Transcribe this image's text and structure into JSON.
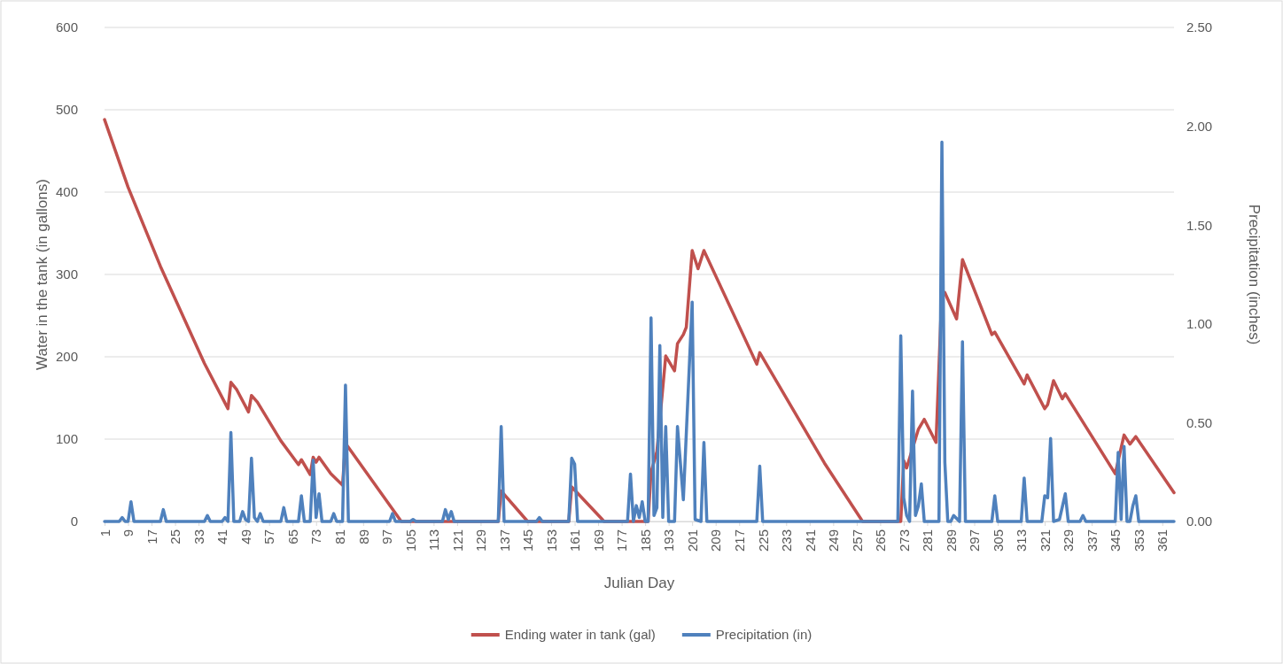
{
  "chart_data": {
    "type": "line",
    "xlabel": "Julian Day",
    "ylabel": "Water in the tank (in gallons)",
    "y2label": "Precipitation (inches)",
    "xlim": [
      1,
      365
    ],
    "xticks": [
      1,
      9,
      17,
      25,
      33,
      41,
      49,
      57,
      65,
      73,
      81,
      89,
      97,
      105,
      113,
      121,
      129,
      137,
      145,
      153,
      161,
      169,
      177,
      185,
      193,
      201,
      209,
      217,
      225,
      233,
      241,
      249,
      257,
      265,
      273,
      281,
      289,
      297,
      305,
      313,
      321,
      329,
      337,
      345,
      353,
      361
    ],
    "ylim": [
      0,
      600
    ],
    "yticks": [
      0,
      100,
      200,
      300,
      400,
      500,
      600
    ],
    "y2lim": [
      0,
      2.5
    ],
    "y2ticks": [
      {
        "value": 0,
        "label": "0.00"
      },
      {
        "value": 0.5,
        "label": "0.50"
      },
      {
        "value": 1,
        "label": "1.00"
      },
      {
        "value": 1.5,
        "label": "1.50"
      },
      {
        "value": 2,
        "label": "2.00"
      },
      {
        "value": 2.5,
        "label": "2.50"
      }
    ],
    "grid": "y",
    "legend": "bottom",
    "series": [
      {
        "name": "Ending water in tank (gal)",
        "color": "#c0504d",
        "x": [
          1,
          9,
          20,
          35,
          43,
          44,
          46,
          50,
          51,
          53,
          61,
          67,
          68,
          71,
          72,
          73,
          74,
          78,
          82,
          83,
          99,
          102,
          135,
          136,
          145,
          159,
          160,
          170,
          171,
          186,
          187,
          189,
          192,
          195,
          196,
          198,
          199,
          201,
          203,
          205,
          223,
          224,
          246,
          259,
          272,
          273,
          274,
          278,
          280,
          284,
          286,
          287,
          291,
          293,
          303,
          304,
          314,
          315,
          321,
          322,
          324,
          327,
          328,
          345,
          348,
          350,
          352,
          365
        ],
        "values": [
          488,
          406,
          310,
          192,
          137,
          169,
          160,
          133,
          153,
          145,
          98,
          69,
          75,
          57,
          78,
          72,
          78,
          58,
          44,
          95,
          15,
          0,
          0,
          37,
          0,
          0,
          42,
          4,
          0,
          0,
          60,
          85,
          201,
          183,
          216,
          227,
          236,
          329,
          307,
          329,
          191,
          205,
          71,
          0,
          0,
          74,
          65,
          112,
          124,
          96,
          280,
          278,
          246,
          318,
          227,
          230,
          167,
          178,
          137,
          142,
          171,
          149,
          155,
          58,
          105,
          94,
          103,
          35
        ]
      },
      {
        "name": "Precipitation (in)",
        "color": "#4f81bd",
        "axis": "y2",
        "x": [
          1,
          6,
          7,
          8,
          9,
          10,
          11,
          20,
          21,
          22,
          35,
          36,
          37,
          41,
          42,
          43,
          44,
          45,
          47,
          48,
          49,
          50,
          51,
          52,
          53,
          54,
          55,
          61,
          62,
          63,
          67,
          68,
          69,
          71,
          72,
          73,
          74,
          75,
          78,
          79,
          80,
          82,
          83,
          84,
          98,
          99,
          100,
          105,
          106,
          107,
          116,
          117,
          118,
          119,
          120,
          135,
          136,
          137,
          148,
          149,
          150,
          159,
          160,
          161,
          162,
          179,
          180,
          181,
          182,
          183,
          184,
          185,
          186,
          187,
          188,
          189,
          190,
          191,
          192,
          193,
          195,
          196,
          198,
          201,
          202,
          204,
          205,
          206,
          223,
          224,
          225,
          271,
          272,
          273,
          274,
          275,
          276,
          277,
          278,
          279,
          280,
          285,
          286,
          287,
          288,
          289,
          290,
          292,
          293,
          294,
          303,
          304,
          305,
          313,
          314,
          315,
          320,
          321,
          322,
          323,
          324,
          326,
          328,
          329,
          333,
          334,
          335,
          345,
          346,
          347,
          348,
          349,
          350,
          351,
          352,
          353,
          365
        ],
        "values": [
          0,
          0,
          0.02,
          0,
          0,
          0.1,
          0,
          0,
          0.06,
          0,
          0,
          0.03,
          0,
          0,
          0.02,
          0,
          0.45,
          0,
          0,
          0.05,
          0.01,
          0,
          0.32,
          0.02,
          0,
          0.04,
          0,
          0,
          0.07,
          0,
          0,
          0.13,
          0,
          0,
          0.31,
          0.02,
          0.14,
          0,
          0,
          0.04,
          0,
          0,
          0.69,
          0,
          0,
          0.04,
          0,
          0,
          0.01,
          0,
          0,
          0.06,
          0.01,
          0.05,
          0,
          0,
          0.48,
          0,
          0,
          0.02,
          0,
          0,
          0.32,
          0.29,
          0,
          0,
          0.24,
          0,
          0.08,
          0.02,
          0.1,
          0,
          0,
          1.03,
          0.03,
          0.07,
          0.89,
          0.02,
          0.48,
          0,
          0,
          0.48,
          0.11,
          1.11,
          0.01,
          0,
          0.4,
          0,
          0,
          0.28,
          0,
          0,
          0.94,
          0.12,
          0.03,
          0,
          0.66,
          0.03,
          0.08,
          0.19,
          0,
          0,
          1.92,
          0.3,
          0,
          0,
          0.03,
          0,
          0.91,
          0,
          0,
          0.13,
          0,
          0,
          0.22,
          0,
          0,
          0.13,
          0.12,
          0.42,
          0,
          0.01,
          0.14,
          0,
          0,
          0.03,
          0,
          0,
          0.35,
          0.01,
          0.38,
          0,
          0,
          0.08,
          0.13,
          0,
          0
        ]
      }
    ]
  }
}
